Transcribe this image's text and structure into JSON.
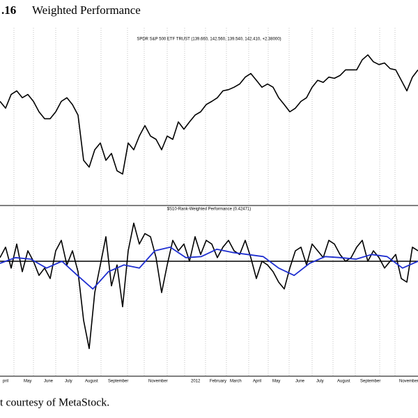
{
  "header": {
    "number": ".16",
    "title": "Weighted Performance"
  },
  "caption": "t courtesy of MetaStock.",
  "chart_data": [
    {
      "type": "line",
      "title": "SPDR S&P 500 ETF TRUST (139.660, 142.560, 139.540, 142.410, +2.38000)",
      "ylim": [
        104,
        148
      ],
      "series": [
        {
          "color": "#000000",
          "values": [
            129.8,
            128.1,
            131.5,
            132.4,
            130.7,
            131.5,
            129.8,
            127.2,
            125.5,
            125.5,
            127.2,
            129.8,
            130.7,
            129.0,
            126.4,
            115.2,
            113.5,
            117.8,
            119.5,
            115.2,
            116.9,
            112.6,
            111.8,
            119.5,
            117.8,
            121.2,
            123.8,
            121.2,
            120.4,
            117.8,
            121.2,
            120.4,
            124.7,
            122.9,
            124.7,
            126.4,
            127.2,
            129.0,
            129.8,
            130.7,
            132.4,
            132.7,
            133.3,
            134.1,
            135.8,
            136.7,
            135.0,
            133.3,
            134.1,
            133.3,
            130.7,
            129.0,
            127.2,
            128.1,
            129.8,
            130.7,
            133.3,
            135.0,
            134.5,
            135.8,
            135.5,
            136.2,
            137.6,
            137.6,
            137.6,
            140.1,
            141.3,
            139.6,
            138.9,
            139.3,
            137.9,
            137.6,
            135.0,
            132.4,
            135.8,
            137.6
          ]
        }
      ]
    },
    {
      "type": "line",
      "title": "$S10-Rank-Weighted Performance (0.42471)",
      "ylim": [
        -2.2,
        1.0
      ],
      "hline": 0,
      "xtick_labels": [
        "pril",
        "May",
        "June",
        "July",
        "August",
        "September",
        "November",
        "2012",
        "February",
        "March",
        "April",
        "May",
        "June",
        "July",
        "August",
        "September",
        "November"
      ],
      "series": [
        {
          "color": "#000000",
          "values": [
            0.07,
            0.27,
            -0.13,
            0.33,
            -0.2,
            0.2,
            0,
            -0.27,
            -0.13,
            -0.33,
            0.2,
            0.4,
            -0.07,
            0.2,
            -0.2,
            -1.13,
            -1.67,
            -0.6,
            -0.07,
            0.47,
            -0.47,
            -0.07,
            -0.87,
            0.2,
            0.73,
            0.33,
            0.53,
            0.47,
            0.07,
            -0.6,
            -0.07,
            0.4,
            0.2,
            0.33,
            0,
            0.47,
            0.13,
            0.4,
            0.33,
            0.07,
            0.27,
            0.4,
            0.2,
            0.13,
            0.4,
            0.07,
            -0.33,
            0,
            -0.07,
            -0.2,
            -0.4,
            -0.53,
            -0.13,
            0.2,
            0.27,
            -0.07,
            0.33,
            0.2,
            0.07,
            0.4,
            0.33,
            0.13,
            0,
            0.07,
            0.27,
            0.4,
            0,
            0.2,
            0.07,
            -0.13,
            0,
            0.13,
            -0.33,
            -0.4,
            0.27,
            0.2
          ]
        },
        {
          "color": "#1f2fd0",
          "values": [
            -0.04,
            0.07,
            0.04,
            -0.13,
            0,
            -0.27,
            -0.53,
            -0.2,
            -0.07,
            -0.13,
            0.2,
            0.27,
            0.07,
            0.09,
            0.23,
            0.17,
            0.13,
            0.09,
            -0.13,
            -0.27,
            -0.04,
            0.09,
            0.07,
            0.04,
            0.13,
            0.09,
            -0.13,
            0
          ]
        }
      ]
    }
  ]
}
